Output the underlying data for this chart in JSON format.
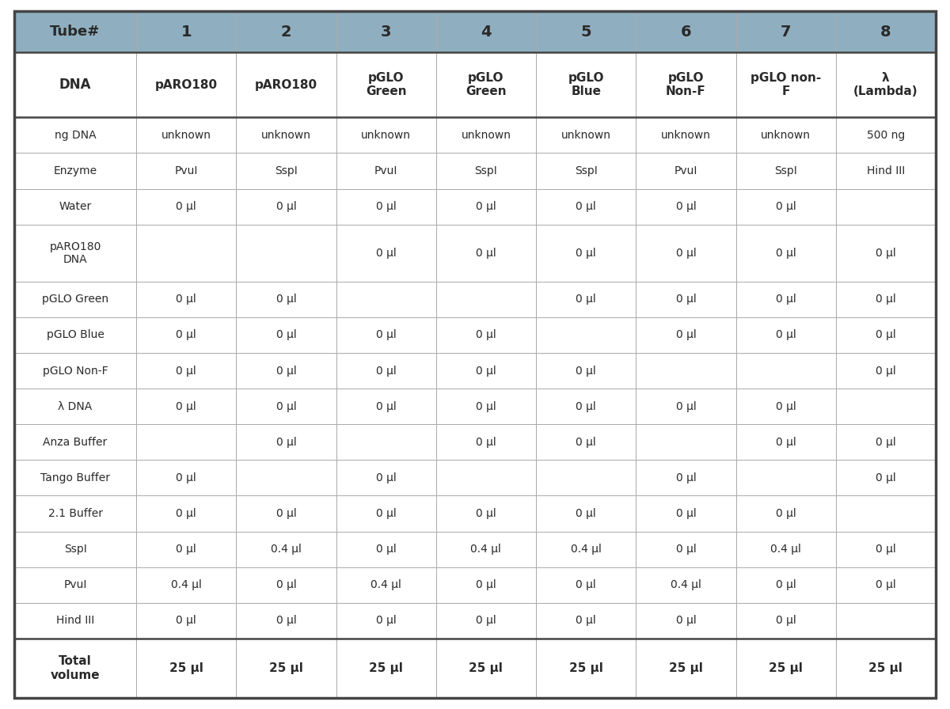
{
  "header_bg": "#8fafc0",
  "header_text_color": "#2a2a2a",
  "normal_row_bg": "#ffffff",
  "border_color": "#aaaaaa",
  "thick_border_color": "#444444",
  "text_color": "#2a2a2a",
  "background_color": "#ffffff",
  "tube_nums": [
    "1",
    "2",
    "3",
    "4",
    "5",
    "6",
    "7",
    "8"
  ],
  "dna_labels": [
    "pARO180",
    "pARO180",
    "pGLO\nGreen",
    "pGLO\nGreen",
    "pGLO\nBlue",
    "pGLO\nNon-F",
    "pGLO non-\nF",
    "λ\n(Lambda)"
  ],
  "table_data": {
    "ng DNA": [
      "unknown",
      "unknown",
      "unknown",
      "unknown",
      "unknown",
      "unknown",
      "unknown",
      "500 ng"
    ],
    "Enzyme": [
      "PvuI",
      "SspI",
      "PvuI",
      "SspI",
      "SspI",
      "PvuI",
      "SspI",
      "Hind III"
    ],
    "Water": [
      "0 μl",
      "0 μl",
      "0 μl",
      "0 μl",
      "0 μl",
      "0 μl",
      "0 μl",
      ""
    ],
    "pARO180\nDNA": [
      "",
      "",
      "0 μl",
      "0 μl",
      "0 μl",
      "0 μl",
      "0 μl",
      "0 μl"
    ],
    "pGLO Green": [
      "0 μl",
      "0 μl",
      "",
      "",
      "0 μl",
      "0 μl",
      "0 μl",
      "0 μl"
    ],
    "pGLO Blue": [
      "0 μl",
      "0 μl",
      "0 μl",
      "0 μl",
      "",
      "0 μl",
      "0 μl",
      "0 μl"
    ],
    "pGLO Non-F": [
      "0 μl",
      "0 μl",
      "0 μl",
      "0 μl",
      "0 μl",
      "",
      "",
      "0 μl"
    ],
    "λ DNA": [
      "0 μl",
      "0 μl",
      "0 μl",
      "0 μl",
      "0 μl",
      "0 μl",
      "0 μl",
      ""
    ],
    "Anza Buffer": [
      "",
      "0 μl",
      "",
      "0 μl",
      "0 μl",
      "",
      "0 μl",
      "0 μl"
    ],
    "Tango Buffer": [
      "0 μl",
      "",
      "0 μl",
      "",
      "",
      "0 μl",
      "",
      "0 μl"
    ],
    "2.1 Buffer": [
      "0 μl",
      "0 μl",
      "0 μl",
      "0 μl",
      "0 μl",
      "0 μl",
      "0 μl",
      ""
    ],
    "SspI": [
      "0 μl",
      "0.4 μl",
      "0 μl",
      "0.4 μl",
      "0.4 μl",
      "0 μl",
      "0.4 μl",
      "0 μl"
    ],
    "PvuI": [
      "0.4 μl",
      "0 μl",
      "0.4 μl",
      "0 μl",
      "0 μl",
      "0.4 μl",
      "0 μl",
      "0 μl"
    ],
    "Hind III": [
      "0 μl",
      "0 μl",
      "0 μl",
      "0 μl",
      "0 μl",
      "0 μl",
      "0 μl",
      ""
    ],
    "Total\nvolume": [
      "25 μl",
      "25 μl",
      "25 μl",
      "25 μl",
      "25 μl",
      "25 μl",
      "25 μl",
      "25 μl"
    ]
  },
  "row_order": [
    "ng DNA",
    "Enzyme",
    "Water",
    "pARO180\nDNA",
    "pGLO Green",
    "pGLO Blue",
    "pGLO Non-F",
    "λ DNA",
    "Anza Buffer",
    "Tango Buffer",
    "2.1 Buffer",
    "SspI",
    "PvuI",
    "Hind III",
    "Total\nvolume"
  ]
}
